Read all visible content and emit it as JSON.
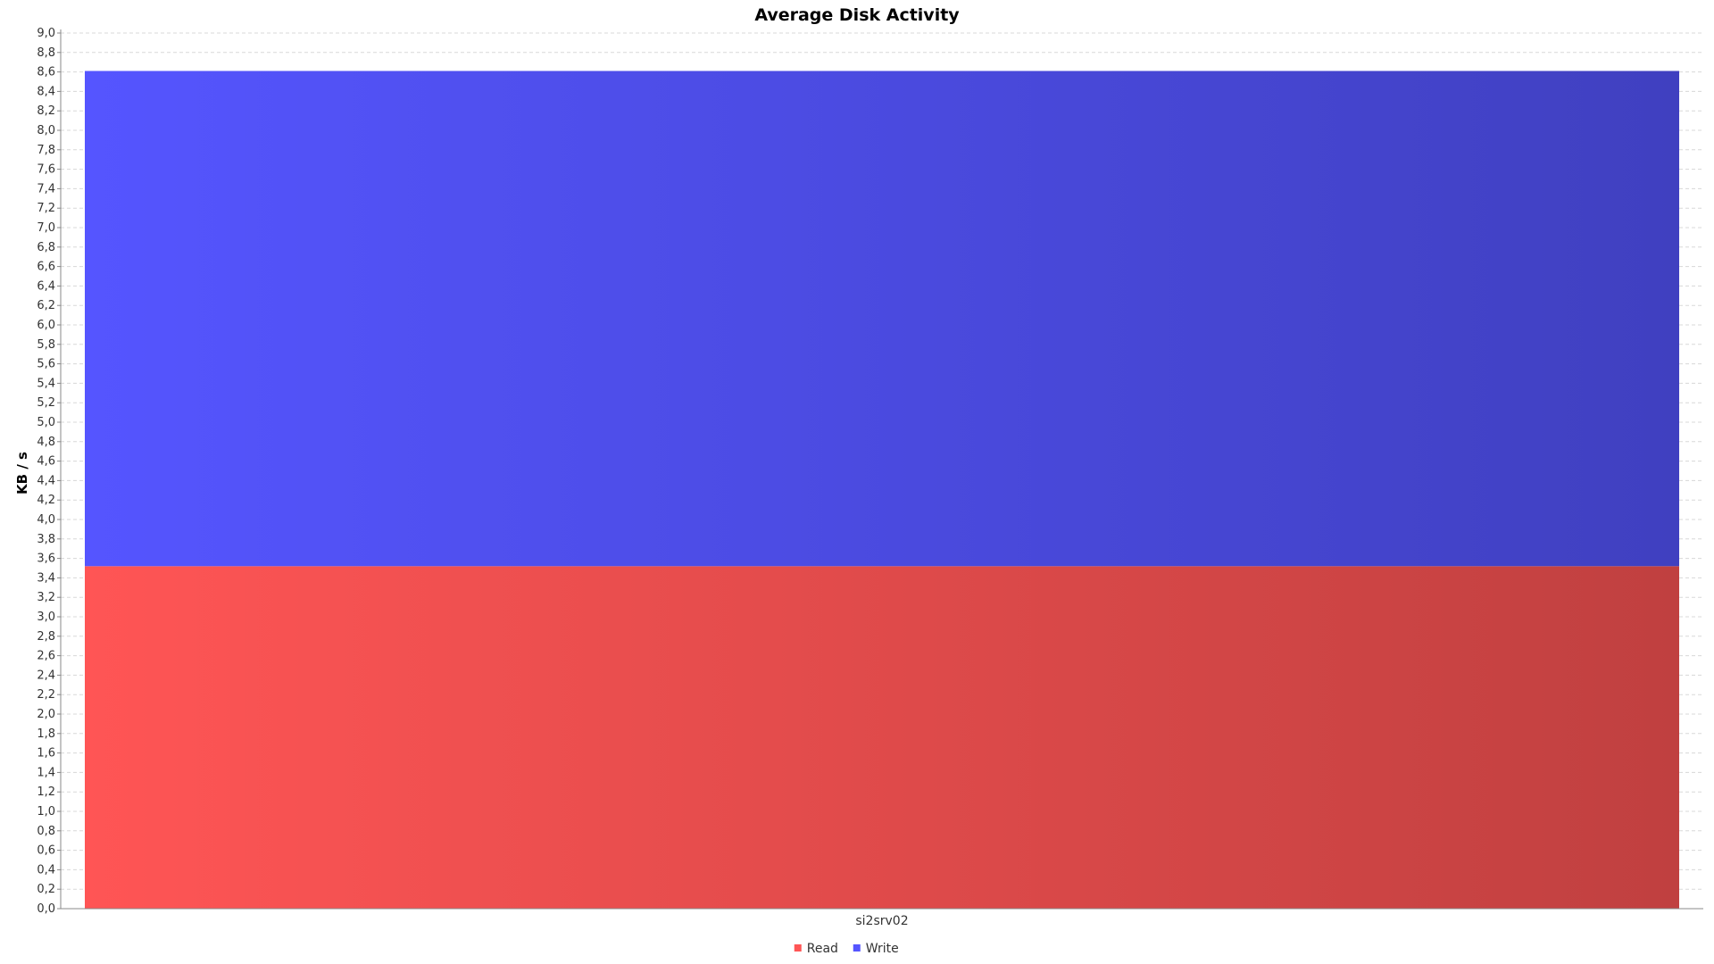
{
  "chart_data": {
    "type": "bar",
    "stacked": true,
    "title": "Average Disk Activity",
    "xlabel": "",
    "ylabel": "KB / s",
    "categories": [
      "si2srv02"
    ],
    "series": [
      {
        "name": "Read",
        "values": [
          3.52
        ],
        "color": "#ff5555",
        "color_end": "#c04040"
      },
      {
        "name": "Write",
        "values": [
          5.09
        ],
        "color": "#5555ff",
        "color_end": "#4040c0"
      }
    ],
    "ylim": [
      0,
      9.0
    ],
    "y_tick_step": 0.2,
    "y_tick_decimal_separator": ",",
    "grid": true,
    "legend_position": "bottom-center"
  }
}
